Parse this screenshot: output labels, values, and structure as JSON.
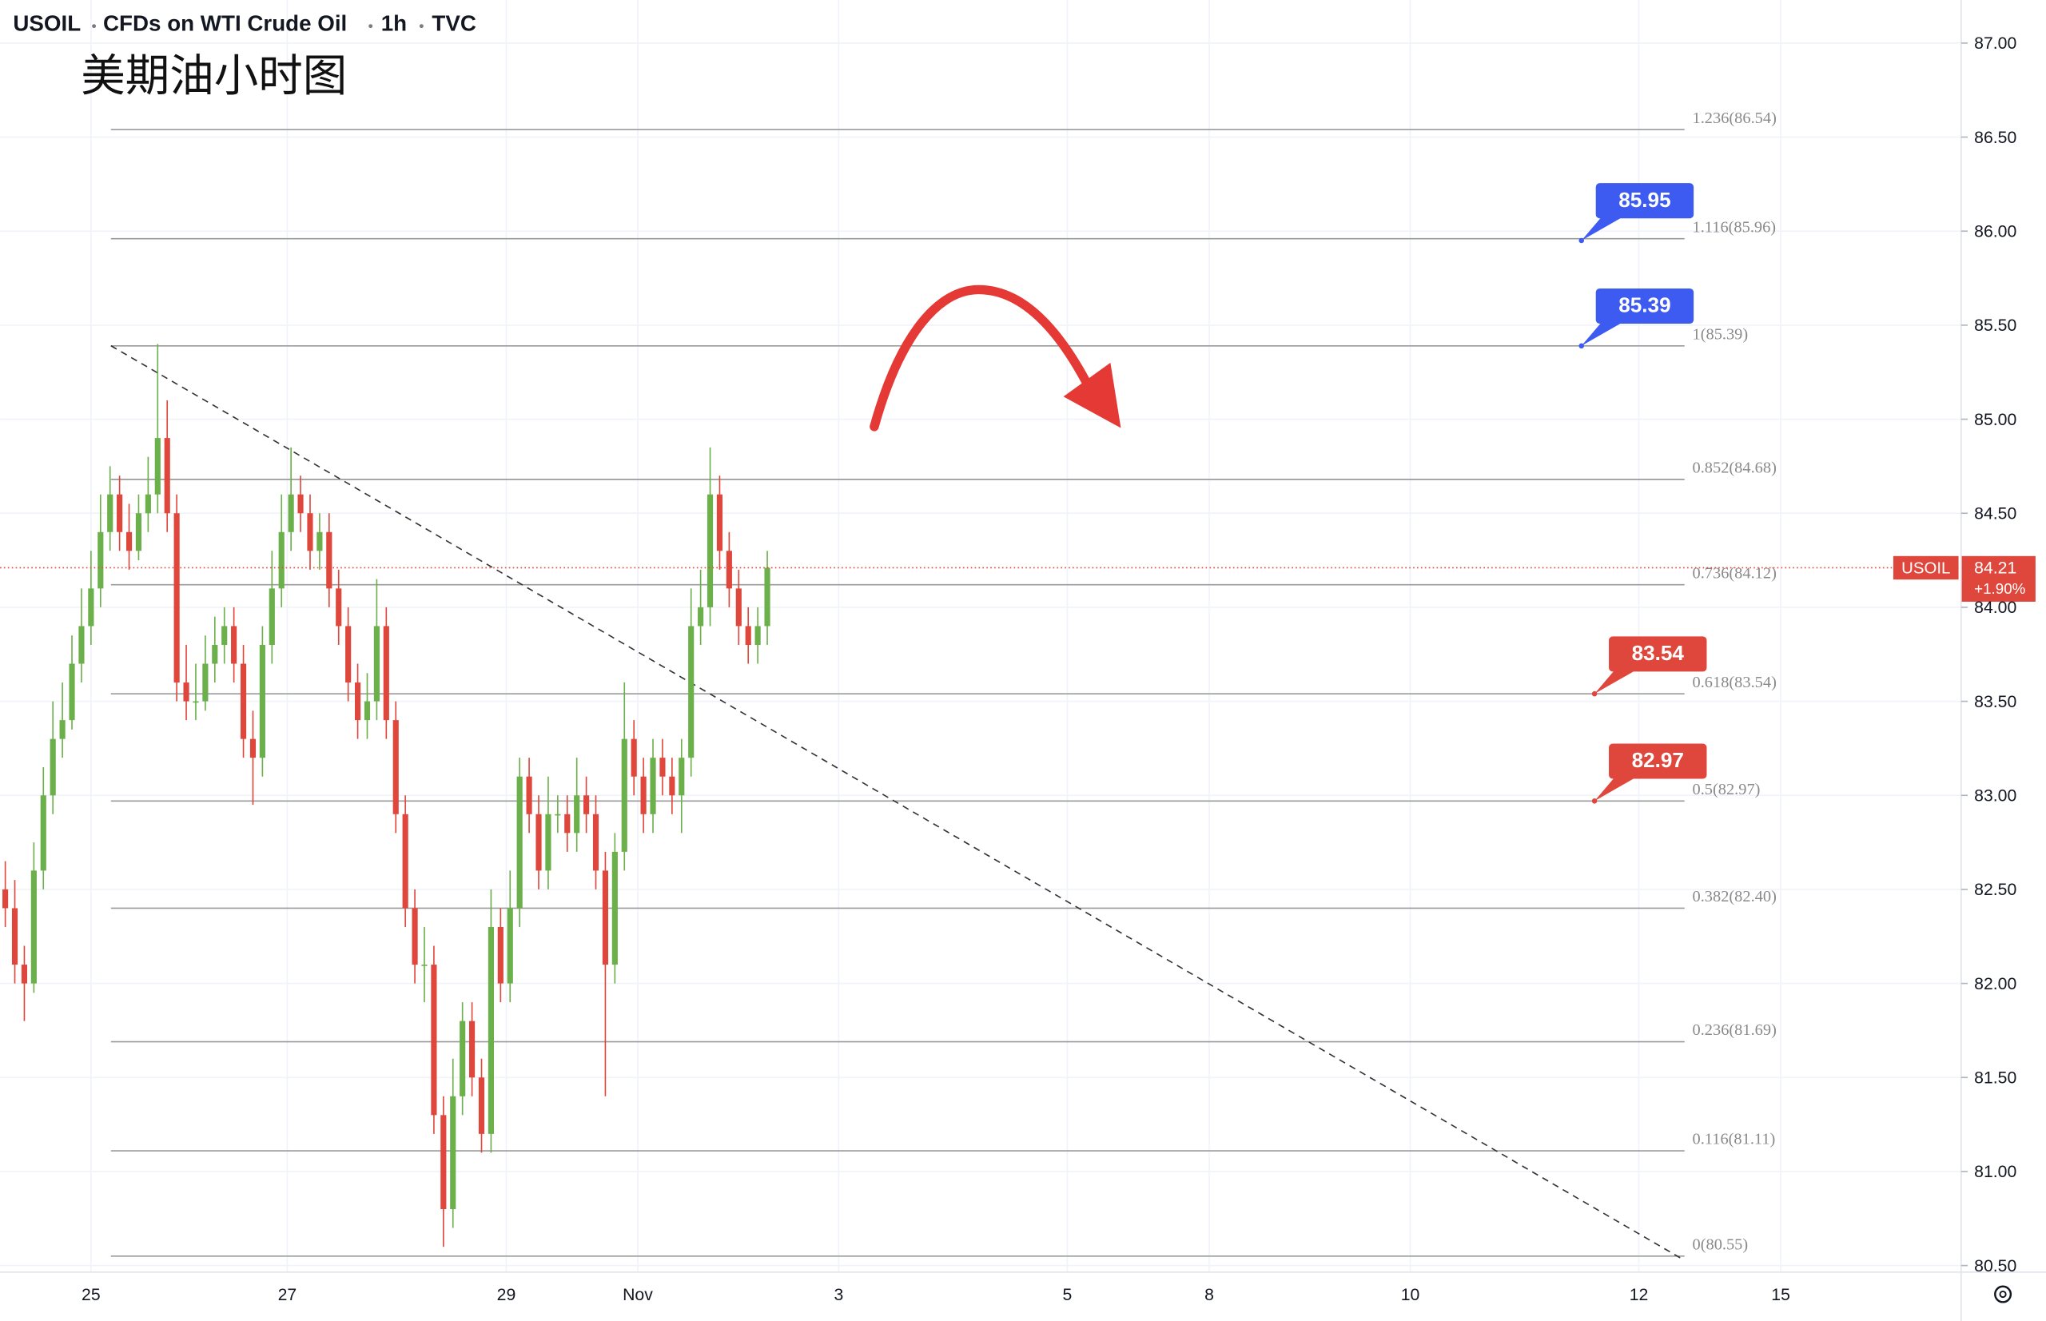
{
  "chart_data": {
    "type": "candlestick",
    "symbol": "USOIL",
    "instrument": "CFDs on WTI Crude Oil",
    "interval": "1h",
    "source": "TVC",
    "annotation": "美期油小时图",
    "up_color": "#6bb04a",
    "down_color": "#e0473c",
    "open": [
      82.5,
      82.4,
      82.1,
      82.0,
      82.6,
      83.0,
      83.3,
      83.4,
      83.7,
      83.9,
      84.1,
      84.4,
      84.6,
      84.4,
      84.3,
      84.5,
      84.6,
      84.9,
      84.5,
      83.6,
      83.5,
      83.5,
      83.7,
      83.8,
      83.9,
      83.7,
      83.3,
      83.2,
      83.8,
      84.1,
      84.4,
      84.6,
      84.5,
      84.3,
      84.4,
      84.1,
      83.9,
      83.6,
      83.4,
      83.5,
      83.9,
      83.4,
      82.9,
      82.4,
      82.1,
      82.1,
      81.3,
      80.8,
      81.4,
      81.8,
      81.5,
      81.2,
      82.3,
      82.0,
      82.4,
      83.1,
      82.9,
      82.6,
      82.9,
      82.9,
      82.8,
      83.0,
      82.9,
      82.6,
      82.1,
      82.7,
      83.3,
      83.1,
      82.9,
      83.2,
      83.1,
      83.0,
      83.2,
      83.9,
      84.0,
      84.6,
      84.3,
      84.1,
      83.9,
      83.8,
      83.9
    ],
    "high": [
      82.65,
      82.55,
      82.2,
      82.75,
      83.15,
      83.5,
      83.6,
      83.85,
      84.1,
      84.3,
      84.6,
      84.75,
      84.7,
      84.55,
      84.6,
      84.8,
      85.4,
      85.1,
      84.6,
      83.8,
      83.7,
      83.85,
      83.95,
      84.0,
      84.0,
      83.8,
      83.45,
      83.9,
      84.3,
      84.6,
      84.85,
      84.7,
      84.6,
      84.5,
      84.5,
      84.2,
      84.0,
      83.7,
      83.65,
      84.15,
      84.0,
      83.5,
      83.0,
      82.5,
      82.3,
      82.2,
      81.4,
      81.6,
      81.9,
      81.9,
      81.6,
      82.5,
      82.4,
      82.6,
      83.2,
      83.2,
      83.0,
      83.1,
      83.0,
      83.0,
      83.2,
      83.1,
      83.0,
      82.7,
      82.8,
      83.6,
      83.4,
      83.2,
      83.3,
      83.3,
      83.2,
      83.3,
      84.1,
      84.2,
      84.85,
      84.7,
      84.4,
      84.2,
      84.0,
      84.0,
      84.3
    ],
    "low": [
      82.3,
      82.0,
      81.8,
      81.95,
      82.5,
      82.9,
      83.2,
      83.35,
      83.6,
      83.8,
      84.0,
      84.3,
      84.3,
      84.2,
      84.25,
      84.4,
      84.5,
      84.4,
      83.5,
      83.4,
      83.4,
      83.45,
      83.6,
      83.7,
      83.6,
      83.2,
      82.95,
      83.1,
      83.7,
      84.0,
      84.3,
      84.4,
      84.2,
      84.2,
      84.0,
      83.8,
      83.5,
      83.3,
      83.3,
      83.4,
      83.3,
      82.8,
      82.3,
      82.0,
      81.9,
      81.2,
      80.6,
      80.7,
      81.3,
      81.4,
      81.1,
      81.1,
      81.9,
      81.9,
      82.3,
      82.8,
      82.5,
      82.5,
      82.8,
      82.7,
      82.7,
      82.8,
      82.5,
      81.4,
      82.0,
      82.6,
      83.0,
      82.8,
      82.8,
      83.0,
      82.9,
      82.8,
      83.1,
      83.8,
      83.9,
      84.2,
      84.0,
      83.8,
      83.7,
      83.7,
      83.8
    ],
    "close": [
      82.4,
      82.1,
      82.0,
      82.6,
      83.0,
      83.3,
      83.4,
      83.7,
      83.9,
      84.1,
      84.4,
      84.6,
      84.4,
      84.3,
      84.5,
      84.6,
      84.9,
      84.5,
      83.6,
      83.5,
      83.5,
      83.7,
      83.8,
      83.9,
      83.7,
      83.3,
      83.2,
      83.8,
      84.1,
      84.4,
      84.6,
      84.5,
      84.3,
      84.4,
      84.1,
      83.9,
      83.6,
      83.4,
      83.5,
      83.9,
      83.4,
      82.9,
      82.4,
      82.1,
      82.1,
      81.3,
      80.8,
      81.4,
      81.8,
      81.5,
      81.2,
      82.3,
      82.0,
      82.4,
      83.1,
      82.9,
      82.6,
      82.9,
      82.9,
      82.8,
      83.0,
      82.9,
      82.6,
      82.1,
      82.7,
      83.3,
      83.1,
      82.9,
      83.2,
      83.1,
      83.0,
      83.2,
      83.9,
      84.0,
      84.6,
      84.3,
      84.1,
      83.9,
      83.8,
      83.9,
      84.21
    ],
    "xlim": [
      -0.55,
      205.34
    ],
    "xticks": [
      {
        "value": 9,
        "label": "25"
      },
      {
        "value": 29.6,
        "label": "27"
      },
      {
        "value": 52.6,
        "label": "29"
      },
      {
        "value": 66.4,
        "label": "Nov"
      },
      {
        "value": 87.5,
        "label": "3"
      },
      {
        "value": 111.5,
        "label": "5"
      },
      {
        "value": 126.4,
        "label": "8"
      },
      {
        "value": 147.5,
        "label": "10"
      },
      {
        "value": 171.5,
        "label": "12"
      },
      {
        "value": 186.4,
        "label": "15"
      }
    ],
    "ylim": [
      80.5,
      87.0
    ],
    "yticks": [
      {
        "value": 80.5,
        "label": "80.50"
      },
      {
        "value": 81,
        "label": "81.00"
      },
      {
        "value": 81.5,
        "label": "81.50"
      },
      {
        "value": 82,
        "label": "82.00"
      },
      {
        "value": 82.5,
        "label": "82.50"
      },
      {
        "value": 83,
        "label": "83.00"
      },
      {
        "value": 83.5,
        "label": "83.50"
      },
      {
        "value": 84,
        "label": "84.00"
      },
      {
        "value": 84.5,
        "label": "84.50"
      },
      {
        "value": 85,
        "label": "85.00"
      },
      {
        "value": 85.5,
        "label": "85.50"
      },
      {
        "value": 86,
        "label": "86.00"
      },
      {
        "value": 86.5,
        "label": "86.50"
      },
      {
        "value": 87,
        "label": "87.00"
      }
    ],
    "grid": true,
    "fib_levels": [
      {
        "label": "1.236(86.54)",
        "value": 86.54
      },
      {
        "label": "1.116(85.96)",
        "value": 85.96
      },
      {
        "label": "1(85.39)",
        "value": 85.39
      },
      {
        "label": "0.852(84.68)",
        "value": 84.68
      },
      {
        "label": "0.736(84.12)",
        "value": 84.12
      },
      {
        "label": "0.618(83.54)",
        "value": 83.54
      },
      {
        "label": "0.5(82.97)",
        "value": 82.97
      },
      {
        "label": "0.382(82.40)",
        "value": 82.4
      },
      {
        "label": "0.236(81.69)",
        "value": 81.69
      },
      {
        "label": "0.116(81.11)",
        "value": 81.11
      },
      {
        "label": "0(80.55)",
        "value": 80.55
      }
    ],
    "callouts": [
      {
        "value": 85.95,
        "color": "#3d5af1"
      },
      {
        "value": 85.39,
        "color": "#3d5af1"
      },
      {
        "value": 83.54,
        "color": "#e0473c"
      },
      {
        "value": 82.97,
        "color": "#e0473c"
      }
    ],
    "last_price": {
      "symbol": "USOIL",
      "value": 84.21,
      "change": "+1.90%",
      "color": "#e0473c"
    }
  }
}
